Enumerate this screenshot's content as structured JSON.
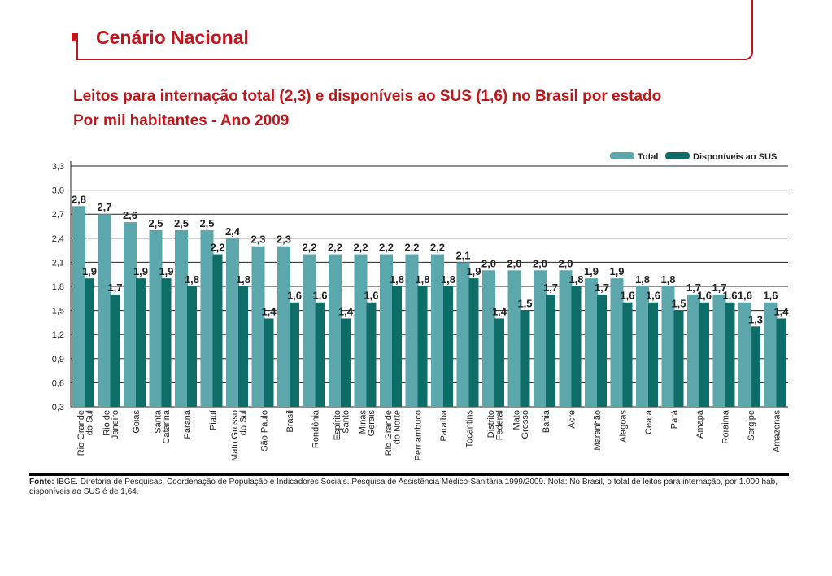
{
  "header": {
    "section_title": "Cenário Nacional",
    "subtitle_line1": "Leitos para internação total (2,3) e disponíveis ao SUS (1,6) no Brasil por estado",
    "subtitle_line2": "Por mil habitantes - Ano 2009"
  },
  "colors": {
    "accent": "#c0151b",
    "total": "#5ba7ac",
    "sus": "#0e6e67"
  },
  "chart_data": {
    "type": "bar",
    "ylim": [
      0.3,
      3.3
    ],
    "yticks": [
      "0,3",
      "0,6",
      "0,9",
      "1,2",
      "1,5",
      "1,8",
      "2,1",
      "2,4",
      "2,7",
      "3,0",
      "3,3"
    ],
    "legend": {
      "placement": "top-right",
      "total": "Total",
      "sus": "Disponíveis ao SUS"
    },
    "categories": [
      [
        "Rio Grande",
        "do Sul"
      ],
      [
        "Rio de",
        "Janeiro"
      ],
      [
        "Goiás"
      ],
      [
        "Santa",
        "Catarina"
      ],
      [
        "Paraná"
      ],
      [
        "Piauí"
      ],
      [
        "Mato Grosso",
        "do Sul"
      ],
      [
        "São Paulo"
      ],
      [
        "Brasil"
      ],
      [
        "Rondônia"
      ],
      [
        "Espírito",
        "Santo"
      ],
      [
        "Minas",
        "Gerais"
      ],
      [
        "Rio Grande",
        "do Norte"
      ],
      [
        "Pernambuco"
      ],
      [
        "Paraíba"
      ],
      [
        "Tocantins"
      ],
      [
        "Distrito",
        "Federal"
      ],
      [
        "Mato",
        "Grosso"
      ],
      [
        "Bahia"
      ],
      [
        "Acre"
      ],
      [
        "Maranhão"
      ],
      [
        "Alagoas"
      ],
      [
        "Ceará"
      ],
      [
        "Pará"
      ],
      [
        "Amapá"
      ],
      [
        "Roraima"
      ],
      [
        "Sergipe"
      ],
      [
        "Amazonas"
      ]
    ],
    "series": [
      {
        "name": "Total",
        "values": [
          2.8,
          2.7,
          2.6,
          2.5,
          2.5,
          2.5,
          2.4,
          2.3,
          2.3,
          2.2,
          2.2,
          2.2,
          2.2,
          2.2,
          2.2,
          2.1,
          2.0,
          2.0,
          2.0,
          2.0,
          1.9,
          1.9,
          1.8,
          1.8,
          1.7,
          1.7,
          1.6,
          1.6
        ],
        "labels": [
          "2,8",
          "2,7",
          "2,6",
          "2,5",
          "2,5",
          "2,5",
          "2,4",
          "2,3",
          "2,3",
          "2,2",
          "2,2",
          "2,2",
          "2,2",
          "2,2",
          "2,2",
          "2,1",
          "2,0",
          "2,0",
          "2,0",
          "2,0",
          "1,9",
          "1,9",
          "1,8",
          "1,8",
          "1,7",
          "1,7",
          "1,6",
          "1,6"
        ]
      },
      {
        "name": "Disponíveis ao SUS",
        "values": [
          1.9,
          1.7,
          1.9,
          1.9,
          1.8,
          2.2,
          1.8,
          1.4,
          1.6,
          1.6,
          1.4,
          1.6,
          1.8,
          1.8,
          1.8,
          1.9,
          1.4,
          1.5,
          1.7,
          1.8,
          1.7,
          1.6,
          1.6,
          1.5,
          1.6,
          1.6,
          1.3,
          1.4
        ],
        "labels": [
          "1,9",
          "1,7",
          "1,9",
          "1,9",
          "1,8",
          "2,2",
          "1,8",
          "1,4",
          "1,6",
          "1,6",
          "1,4",
          "1,6",
          "1,8",
          "1,8",
          "1,8",
          "1,9",
          "1,4",
          "1,5",
          "1,7",
          "1,8",
          "1,7",
          "1,6",
          "1,6",
          "1,5",
          "1,6",
          "1,6",
          "1,3",
          "1,4"
        ]
      }
    ]
  },
  "source": {
    "label": "Fonte:",
    "text": " IBGE. Diretoria de Pesquisas. Coordenação de População e Indicadores Sociais. Pesquisa de Assistência Médico-Sanitária 1999/2009. Nota: No Brasil, o total de leitos para internação, por 1.000 hab, disponíveis ao SUS é de 1,64."
  }
}
